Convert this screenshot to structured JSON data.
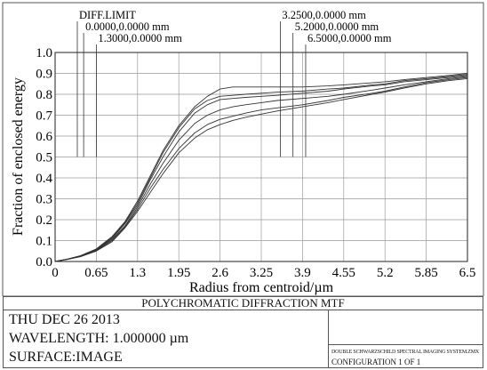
{
  "chart_data": {
    "type": "line",
    "title": "POLYCHROMATIC DIFFRACTION MTF",
    "xlabel": "Radius from centroid/µm",
    "ylabel": "Fraction of enclosed energy",
    "xlim": [
      0,
      6.5
    ],
    "ylim": [
      0,
      1.0
    ],
    "xticks": [
      "0",
      "0.65",
      "1.3",
      "1.95",
      "2.6",
      "3.25",
      "3.9",
      "4.55",
      "5.2",
      "5.85",
      "6.5"
    ],
    "yticks": [
      "0.0",
      "0.1",
      "0.2",
      "0.3",
      "0.4",
      "0.5",
      "0.6",
      "0.7",
      "0.8",
      "0.9",
      "1.0"
    ],
    "grid": true,
    "legend": [
      {
        "label": "DIFF.LIMIT",
        "x": 0.35
      },
      {
        "label": "0.0000,0.0000 mm",
        "x": 0.45
      },
      {
        "label": "1.3000,0.0000 mm",
        "x": 0.65
      },
      {
        "label": "3.2500,0.0000 mm",
        "x": 3.55
      },
      {
        "label": "5.2000,0.0000 mm",
        "x": 3.75
      },
      {
        "label": "6.5000,0.0000 mm",
        "x": 3.95
      }
    ],
    "x": [
      0,
      0.2,
      0.4,
      0.65,
      0.9,
      1.1,
      1.3,
      1.5,
      1.7,
      1.95,
      2.2,
      2.4,
      2.6,
      2.8,
      3.0,
      3.25,
      3.5,
      3.9,
      4.3,
      4.55,
      5.0,
      5.2,
      5.5,
      5.85,
      6.2,
      6.5
    ],
    "series": [
      {
        "name": "DIFF.LIMIT",
        "values": [
          0,
          0.012,
          0.028,
          0.06,
          0.12,
          0.19,
          0.29,
          0.41,
          0.53,
          0.65,
          0.74,
          0.79,
          0.825,
          0.835,
          0.835,
          0.835,
          0.835,
          0.835,
          0.84,
          0.845,
          0.855,
          0.86,
          0.87,
          0.88,
          0.89,
          0.9
        ]
      },
      {
        "name": "0.0000,0.0000 mm",
        "values": [
          0,
          0.012,
          0.027,
          0.058,
          0.115,
          0.185,
          0.28,
          0.4,
          0.52,
          0.64,
          0.73,
          0.77,
          0.79,
          0.795,
          0.8,
          0.805,
          0.81,
          0.815,
          0.825,
          0.83,
          0.845,
          0.85,
          0.865,
          0.875,
          0.885,
          0.895
        ]
      },
      {
        "name": "1.3000,0.0000 mm",
        "values": [
          0,
          0.011,
          0.026,
          0.056,
          0.11,
          0.18,
          0.27,
          0.39,
          0.5,
          0.62,
          0.71,
          0.75,
          0.775,
          0.78,
          0.785,
          0.79,
          0.795,
          0.805,
          0.815,
          0.825,
          0.84,
          0.845,
          0.86,
          0.87,
          0.88,
          0.89
        ]
      },
      {
        "name": "3.2500,0.0000 mm",
        "values": [
          0,
          0.011,
          0.025,
          0.054,
          0.105,
          0.17,
          0.26,
          0.37,
          0.47,
          0.58,
          0.66,
          0.7,
          0.725,
          0.74,
          0.75,
          0.76,
          0.77,
          0.78,
          0.79,
          0.8,
          0.82,
          0.83,
          0.845,
          0.86,
          0.875,
          0.885
        ]
      },
      {
        "name": "5.2000,0.0000 mm",
        "values": [
          0,
          0.01,
          0.024,
          0.052,
          0.1,
          0.165,
          0.25,
          0.35,
          0.44,
          0.54,
          0.615,
          0.655,
          0.68,
          0.695,
          0.71,
          0.725,
          0.735,
          0.75,
          0.77,
          0.785,
          0.805,
          0.815,
          0.835,
          0.855,
          0.87,
          0.88
        ]
      },
      {
        "name": "6.5000,0.0000 mm",
        "values": [
          0,
          0.01,
          0.023,
          0.05,
          0.095,
          0.16,
          0.24,
          0.33,
          0.42,
          0.52,
          0.59,
          0.63,
          0.655,
          0.675,
          0.69,
          0.705,
          0.72,
          0.74,
          0.76,
          0.775,
          0.8,
          0.81,
          0.83,
          0.85,
          0.865,
          0.875
        ]
      }
    ]
  },
  "footer": {
    "title": "POLYCHROMATIC DIFFRACTION MTF",
    "date": "THU DEC 26 2013",
    "wavelength": "WAVELENGTH: 1.000000 µm",
    "surface": "SURFACE:IMAGE",
    "filename": "DOUBLE SCHWARZSCHILD SPECTRAL IMAGING SYSTEM.ZMX",
    "configuration": "CONFIGURATION 1 OF 1"
  }
}
